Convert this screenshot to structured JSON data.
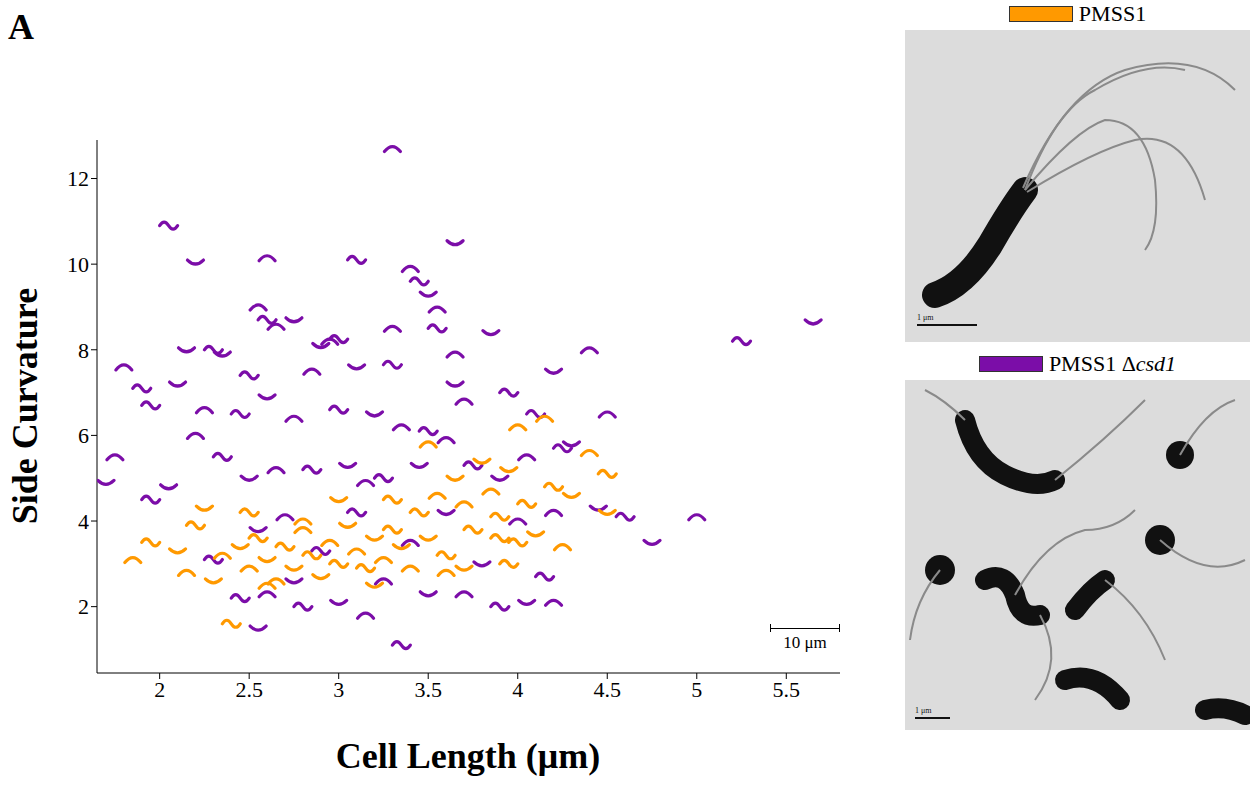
{
  "panel_label": "A",
  "chart_data": {
    "type": "scatter",
    "x_label": "Cell Length (μm)",
    "y_label": "Side Curvature",
    "xlim": [
      1.65,
      5.8
    ],
    "xticks": [
      2,
      2.5,
      3,
      3.5,
      4,
      4.5,
      5,
      5.5
    ],
    "ylim": [
      0.45,
      12.9
    ],
    "yticks": [
      2,
      4,
      6,
      8,
      10,
      12
    ],
    "grid": false,
    "legend": "right",
    "scale_bar": "10 μm",
    "series": [
      {
        "name": "PMSS1 Δcsd1",
        "color": "#7b0da8",
        "marker": "arc",
        "x": [
          3.3,
          2.05,
          2.2,
          2.6,
          3.1,
          3.65,
          3.4,
          3.45,
          3.5,
          3.55,
          5.25,
          5.65,
          1.8,
          1.9,
          2.15,
          2.55,
          2.6,
          2.75,
          2.65,
          2.3,
          2.35,
          2.95,
          3.0,
          2.9,
          3.3,
          3.55,
          3.85,
          3.65,
          3.3,
          3.1,
          2.85,
          2.5,
          2.1,
          2.25,
          2.45,
          2.6,
          2.75,
          3.0,
          3.2,
          3.35,
          3.5,
          3.65,
          3.7,
          3.95,
          4.2,
          4.4,
          4.1,
          4.3,
          4.5,
          1.95,
          1.7,
          1.75,
          1.95,
          2.05,
          2.2,
          2.35,
          2.5,
          2.65,
          2.85,
          3.05,
          3.15,
          3.25,
          3.45,
          3.6,
          3.75,
          3.9,
          4.05,
          4.25,
          4.45,
          4.2,
          4.6,
          4.75,
          5.0,
          2.45,
          2.55,
          2.6,
          2.8,
          3.0,
          3.15,
          3.35,
          3.5,
          3.7,
          3.9,
          4.05,
          4.2,
          4.15,
          3.8,
          3.4,
          2.9,
          2.55,
          2.7,
          3.1,
          3.6,
          4.0,
          2.3,
          2.75,
          3.25
        ],
        "values": [
          12.7,
          10.9,
          10.05,
          10.15,
          10.1,
          10.5,
          9.9,
          9.6,
          9.3,
          8.95,
          8.2,
          8.65,
          7.6,
          7.1,
          8.0,
          9.0,
          8.7,
          8.7,
          8.55,
          8.0,
          7.9,
          8.2,
          8.25,
          8.1,
          8.5,
          8.5,
          8.4,
          7.9,
          7.65,
          7.6,
          7.5,
          7.4,
          7.2,
          6.6,
          6.5,
          6.9,
          6.4,
          6.6,
          6.5,
          6.2,
          6.1,
          7.2,
          6.8,
          7.0,
          7.5,
          8.0,
          6.5,
          5.8,
          6.5,
          6.7,
          4.9,
          5.5,
          4.5,
          4.8,
          6.0,
          5.5,
          5.0,
          5.2,
          5.2,
          5.3,
          4.9,
          5.0,
          5.3,
          5.9,
          5.3,
          5.0,
          5.5,
          5.7,
          4.3,
          4.2,
          4.1,
          3.5,
          4.1,
          2.2,
          1.5,
          2.3,
          2.0,
          2.1,
          1.8,
          1.1,
          2.3,
          2.3,
          2.0,
          2.1,
          2.1,
          2.7,
          3.0,
          3.5,
          3.3,
          3.8,
          4.1,
          4.2,
          4.2,
          4.0,
          3.1,
          2.6,
          2.6
        ]
      },
      {
        "name": "PMSS1",
        "color": "#ff9900",
        "marker": "arc",
        "x": [
          1.85,
          1.95,
          2.1,
          2.15,
          2.2,
          2.3,
          2.35,
          2.4,
          2.45,
          2.5,
          2.55,
          2.6,
          2.65,
          2.7,
          2.75,
          2.8,
          2.85,
          2.9,
          2.95,
          3.0,
          3.05,
          3.1,
          3.15,
          3.2,
          3.25,
          3.3,
          3.35,
          3.4,
          3.45,
          3.5,
          3.55,
          3.6,
          3.65,
          3.7,
          3.75,
          3.8,
          3.85,
          3.9,
          3.95,
          4.0,
          4.05,
          4.1,
          4.15,
          4.2,
          4.3,
          4.4,
          4.5,
          4.5,
          4.25,
          3.95,
          3.7,
          3.5,
          3.3,
          3.0,
          2.8,
          2.5,
          2.25,
          3.6,
          4.0,
          3.2,
          2.6,
          3.9
        ],
        "values": [
          3.1,
          3.5,
          3.3,
          2.8,
          3.9,
          2.6,
          3.2,
          1.6,
          3.4,
          2.9,
          3.6,
          3.1,
          2.6,
          3.4,
          2.9,
          3.8,
          3.2,
          2.7,
          3.5,
          3.0,
          3.9,
          3.3,
          2.9,
          3.6,
          3.1,
          3.8,
          3.4,
          2.9,
          4.2,
          3.6,
          4.6,
          3.2,
          5.0,
          4.4,
          3.8,
          5.4,
          4.7,
          3.6,
          5.2,
          6.2,
          4.4,
          3.7,
          6.4,
          4.8,
          4.6,
          5.6,
          5.1,
          4.2,
          3.4,
          3.0,
          2.9,
          5.8,
          4.5,
          4.5,
          4.0,
          4.2,
          4.3,
          2.8,
          3.5,
          2.5,
          2.5,
          4.1
        ]
      }
    ]
  },
  "images": [
    {
      "label": "PMSS1",
      "scale_bar": "1 μm"
    },
    {
      "label": "PMSS1 Δcsd1",
      "scale_bar": "1 μm"
    }
  ]
}
